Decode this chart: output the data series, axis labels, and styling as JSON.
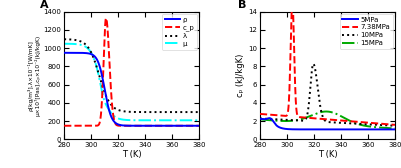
{
  "T_min": 280,
  "T_max": 380,
  "ylim_A": [
    0,
    1400
  ],
  "ylim_B": [
    0,
    14
  ],
  "yticks_A": [
    0,
    200,
    400,
    600,
    800,
    1000,
    1200,
    1400
  ],
  "yticks_B": [
    0,
    2,
    4,
    6,
    8,
    10,
    12,
    14
  ],
  "xticks": [
    280,
    300,
    320,
    340,
    360,
    380
  ],
  "label_A": "A",
  "label_B": "B",
  "xlabel": "T (K)",
  "ylabel_A": "ρ[kg/m³],λ×10⁻¹[W/mK]\nμ×10⁷[Pas],c_p×10⁻²(kJ/kgK)",
  "ylabel_B": "c_p (kJ/kgK)",
  "legend_A": [
    "ρ",
    "c_p",
    "λ",
    "μ"
  ],
  "legend_B": [
    "5MPa",
    "7.38MPa",
    "10MPa",
    "15MPa"
  ],
  "color_rho": "#0000ff",
  "color_cp_A": "#ff0000",
  "color_lam": "#000000",
  "color_mu": "#00ffff",
  "color_5MPa": "#0000ff",
  "color_738MPa": "#ff0000",
  "color_10MPa": "#000000",
  "color_15MPa": "#00aa00"
}
